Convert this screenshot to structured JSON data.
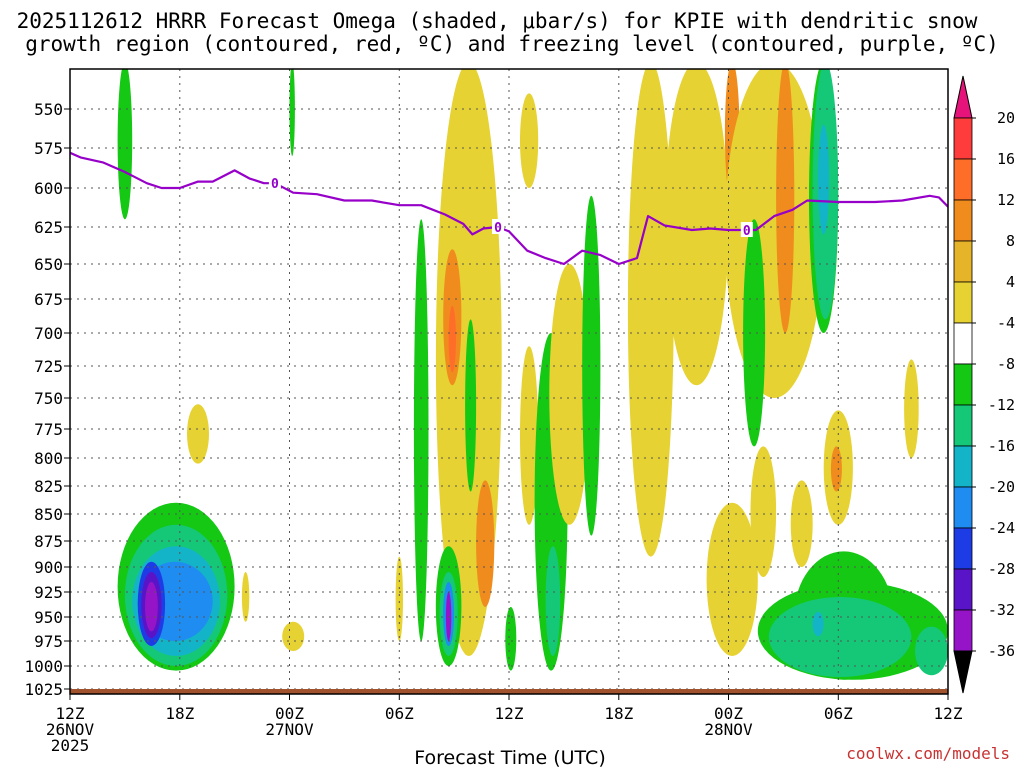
{
  "chart_data": {
    "type": "heatmap",
    "title_lines": [
      "2025112612 HRRR Forecast Omega (shaded, μbar/s) for KPIE with dendritic snow",
      "growth region (contoured, red, ºC) and freezing level (contoured, purple, ºC)"
    ],
    "xlabel": "Forecast Time (UTC)",
    "credit": "coolwx.com/models",
    "x_range_hours": [
      0,
      48
    ],
    "x_ticks": [
      {
        "h": 0,
        "l1": "12Z",
        "l2": "26NOV",
        "l3": "2025"
      },
      {
        "h": 6,
        "l1": "18Z",
        "l2": "",
        "l3": ""
      },
      {
        "h": 12,
        "l1": "00Z",
        "l2": "27NOV",
        "l3": ""
      },
      {
        "h": 18,
        "l1": "06Z",
        "l2": "",
        "l3": ""
      },
      {
        "h": 24,
        "l1": "12Z",
        "l2": "",
        "l3": ""
      },
      {
        "h": 30,
        "l1": "18Z",
        "l2": "",
        "l3": ""
      },
      {
        "h": 36,
        "l1": "00Z",
        "l2": "28NOV",
        "l3": ""
      },
      {
        "h": 42,
        "l1": "06Z",
        "l2": "",
        "l3": ""
      },
      {
        "h": 48,
        "l1": "12Z",
        "l2": "",
        "l3": ""
      }
    ],
    "y_ticks_hpa": [
      550,
      575,
      600,
      625,
      650,
      675,
      700,
      725,
      750,
      775,
      800,
      825,
      850,
      875,
      900,
      925,
      950,
      975,
      1000,
      1025
    ],
    "colorbar": {
      "labels": [
        "20",
        "16",
        "12",
        "8",
        "4",
        "-4",
        "-8",
        "-12",
        "-16",
        "-20",
        "-24",
        "-28",
        "-32",
        "-36"
      ],
      "colors": [
        "#ff3c3c",
        "#ff6e28",
        "#f08c1e",
        "#e6b428",
        "#e6d232",
        "#ffffff",
        "#14c814",
        "#14c878",
        "#14b4c8",
        "#1e8cf0",
        "#1e3ce6",
        "#5a14c8",
        "#9614c8",
        "#a0a0a0"
      ],
      "top_arrow_color": "#e6147a",
      "bottom_arrow_color": "#000000"
    },
    "freezing_level": {
      "label": "0",
      "color": "#9600c8",
      "points": [
        [
          0,
          578
        ],
        [
          0.6,
          581
        ],
        [
          1.8,
          584
        ],
        [
          3.0,
          590
        ],
        [
          4.2,
          597
        ],
        [
          5.0,
          600
        ],
        [
          6.0,
          600
        ],
        [
          7.0,
          596
        ],
        [
          7.8,
          596
        ],
        [
          9.0,
          589
        ],
        [
          9.8,
          594
        ],
        [
          10.6,
          597
        ],
        [
          11.2,
          597
        ],
        [
          12.2,
          603
        ],
        [
          13.5,
          604
        ],
        [
          15.0,
          608
        ],
        [
          16.5,
          608
        ],
        [
          18.0,
          611
        ],
        [
          19.2,
          611
        ],
        [
          20.5,
          617
        ],
        [
          21.5,
          623
        ],
        [
          22.0,
          630
        ],
        [
          22.6,
          626
        ],
        [
          23.4,
          625
        ],
        [
          24.0,
          628
        ],
        [
          25.0,
          641
        ],
        [
          26.0,
          646
        ],
        [
          27.0,
          650
        ],
        [
          28.0,
          641
        ],
        [
          29.0,
          644
        ],
        [
          30.0,
          650
        ],
        [
          31.0,
          646
        ],
        [
          31.6,
          618
        ],
        [
          32.5,
          624
        ],
        [
          34.0,
          627
        ],
        [
          35.0,
          626
        ],
        [
          36.0,
          627
        ],
        [
          37.5,
          627
        ],
        [
          38.5,
          618
        ],
        [
          39.5,
          614
        ],
        [
          40.3,
          608
        ],
        [
          42.0,
          609
        ],
        [
          44.0,
          609
        ],
        [
          45.5,
          608
        ],
        [
          47.0,
          605
        ],
        [
          47.5,
          606
        ],
        [
          48.0,
          612
        ]
      ],
      "label_positions": [
        [
          11.2,
          597
        ],
        [
          23.4,
          625
        ],
        [
          37.0,
          627
        ]
      ]
    },
    "omega_regions": [
      {
        "bin": "-4 to -8",
        "color": "#14c814",
        "t0": 2.6,
        "t1": 3.4,
        "p_top": 520,
        "p_bot": 620
      },
      {
        "bin": "-4 to -8",
        "color": "#14c814",
        "t0": 12.0,
        "t1": 12.3,
        "p_top": 520,
        "p_bot": 580
      },
      {
        "bin": "-4 to -8",
        "color": "#14c814",
        "t0": 2.6,
        "t1": 9.0,
        "p_top": 840,
        "p_bot": 1005
      },
      {
        "bin": "-8 to -12",
        "color": "#14c878",
        "t0": 3.0,
        "t1": 8.6,
        "p_top": 860,
        "p_bot": 1000
      },
      {
        "bin": "-12 to -16",
        "color": "#14b4c8",
        "t0": 3.4,
        "t1": 8.2,
        "p_top": 880,
        "p_bot": 990
      },
      {
        "bin": "-16 to -20",
        "color": "#1e8cf0",
        "t0": 3.7,
        "t1": 7.8,
        "p_top": 895,
        "p_bot": 975
      },
      {
        "bin": "-20 to -24",
        "color": "#1e3ce6",
        "t0": 3.7,
        "t1": 5.2,
        "p_top": 895,
        "p_bot": 980
      },
      {
        "bin": "-24 to -28",
        "color": "#5a14c8",
        "t0": 3.9,
        "t1": 5.0,
        "p_top": 905,
        "p_bot": 972
      },
      {
        "bin": "-28 to -32",
        "color": "#9614c8",
        "t0": 4.1,
        "t1": 4.8,
        "p_top": 915,
        "p_bot": 965
      },
      {
        "bin": "4 to 8",
        "color": "#e6d232",
        "t0": 6.4,
        "t1": 7.6,
        "p_top": 755,
        "p_bot": 805
      },
      {
        "bin": "4 to 8",
        "color": "#e6d232",
        "t0": 9.4,
        "t1": 9.8,
        "p_top": 905,
        "p_bot": 955
      },
      {
        "bin": "4 to 8",
        "color": "#e6d232",
        "t0": 11.6,
        "t1": 12.8,
        "p_top": 955,
        "p_bot": 985
      },
      {
        "bin": "4 to 8",
        "color": "#e6d232",
        "t0": 17.8,
        "t1": 18.2,
        "p_top": 890,
        "p_bot": 975
      },
      {
        "bin": "-4 to -8",
        "color": "#14c814",
        "t0": 18.8,
        "t1": 19.6,
        "p_top": 620,
        "p_bot": 975
      },
      {
        "bin": "4 to 8",
        "color": "#e6d232",
        "t0": 20.0,
        "t1": 23.6,
        "p_top": 520,
        "p_bot": 990
      },
      {
        "bin": "8 to 12",
        "color": "#f08c1e",
        "t0": 20.4,
        "t1": 21.4,
        "p_top": 640,
        "p_bot": 740
      },
      {
        "bin": "12 to 16",
        "color": "#ff6e28",
        "t0": 20.7,
        "t1": 21.1,
        "p_top": 680,
        "p_bot": 730
      },
      {
        "bin": "-4 to -8",
        "color": "#14c814",
        "t0": 20.0,
        "t1": 21.4,
        "p_top": 880,
        "p_bot": 1000
      },
      {
        "bin": "-8 to -12",
        "color": "#14c878",
        "t0": 20.2,
        "t1": 21.2,
        "p_top": 905,
        "p_bot": 990
      },
      {
        "bin": "-16 to -20",
        "color": "#1e8cf0",
        "t0": 20.4,
        "t1": 21.0,
        "p_top": 915,
        "p_bot": 980
      },
      {
        "bin": "-28 to -32",
        "color": "#9614c8",
        "t0": 20.55,
        "t1": 20.85,
        "p_top": 925,
        "p_bot": 975
      },
      {
        "bin": "-4 to -8",
        "color": "#14c814",
        "t0": 21.6,
        "t1": 22.2,
        "p_top": 690,
        "p_bot": 830
      },
      {
        "bin": "8 to 12",
        "color": "#f08c1e",
        "t0": 22.2,
        "t1": 23.2,
        "p_top": 820,
        "p_bot": 940
      },
      {
        "bin": "-4 to -8",
        "color": "#14c814",
        "t0": 23.8,
        "t1": 24.4,
        "p_top": 940,
        "p_bot": 1005
      },
      {
        "bin": "4 to 8",
        "color": "#e6d232",
        "t0": 24.6,
        "t1": 25.6,
        "p_top": 710,
        "p_bot": 860
      },
      {
        "bin": "4 to 8",
        "color": "#e6d232",
        "t0": 24.6,
        "t1": 25.6,
        "p_top": 540,
        "p_bot": 600
      },
      {
        "bin": "-4 to -8",
        "color": "#14c814",
        "t0": 25.4,
        "t1": 27.2,
        "p_top": 700,
        "p_bot": 1005
      },
      {
        "bin": "-8 to -12",
        "color": "#14c878",
        "t0": 26.0,
        "t1": 26.8,
        "p_top": 880,
        "p_bot": 990
      },
      {
        "bin": "4 to 8",
        "color": "#e6d232",
        "t0": 26.2,
        "t1": 28.4,
        "p_top": 650,
        "p_bot": 860
      },
      {
        "bin": "-4 to -8",
        "color": "#14c814",
        "t0": 28.0,
        "t1": 29.0,
        "p_top": 605,
        "p_bot": 870
      },
      {
        "bin": "4 to 8",
        "color": "#e6d232",
        "t0": 30.5,
        "t1": 33.0,
        "p_top": 520,
        "p_bot": 890
      },
      {
        "bin": "4 to 8",
        "color": "#e6d232",
        "t0": 32.5,
        "t1": 36.0,
        "p_top": 520,
        "p_bot": 740
      },
      {
        "bin": "8 to 12",
        "color": "#f08c1e",
        "t0": 35.8,
        "t1": 36.6,
        "p_top": 520,
        "p_bot": 610
      },
      {
        "bin": "4 to 8",
        "color": "#e6d232",
        "t0": 35.8,
        "t1": 41.2,
        "p_top": 520,
        "p_bot": 750
      },
      {
        "bin": "8 to 12",
        "color": "#f08c1e",
        "t0": 38.6,
        "t1": 39.6,
        "p_top": 520,
        "p_bot": 700
      },
      {
        "bin": "4 to 8",
        "color": "#e6d232",
        "t0": 34.8,
        "t1": 37.6,
        "p_top": 840,
        "p_bot": 990
      },
      {
        "bin": "4 to 8",
        "color": "#e6d232",
        "t0": 37.2,
        "t1": 38.6,
        "p_top": 790,
        "p_bot": 910
      },
      {
        "bin": "-4 to -8",
        "color": "#14c814",
        "t0": 36.8,
        "t1": 38.0,
        "p_top": 620,
        "p_bot": 790
      },
      {
        "bin": "4 to 8",
        "color": "#e6d232",
        "t0": 39.4,
        "t1": 40.6,
        "p_top": 820,
        "p_bot": 900
      },
      {
        "bin": "-4 to -8",
        "color": "#14c814",
        "t0": 40.4,
        "t1": 42.0,
        "p_top": 520,
        "p_bot": 700
      },
      {
        "bin": "-8 to -12",
        "color": "#14c878",
        "t0": 40.6,
        "t1": 42.0,
        "p_top": 520,
        "p_bot": 690
      },
      {
        "bin": "-12 to -16",
        "color": "#14b4c8",
        "t0": 40.9,
        "t1": 41.5,
        "p_top": 560,
        "p_bot": 630
      },
      {
        "bin": "4 to 8",
        "color": "#e6d232",
        "t0": 41.2,
        "t1": 42.8,
        "p_top": 760,
        "p_bot": 860
      },
      {
        "bin": "8 to 12",
        "color": "#f08c1e",
        "t0": 41.6,
        "t1": 42.2,
        "p_top": 790,
        "p_bot": 830
      },
      {
        "bin": "4 to 8",
        "color": "#e6d232",
        "t0": 45.6,
        "t1": 46.4,
        "p_top": 720,
        "p_bot": 800
      },
      {
        "bin": "-4 to -8",
        "color": "#14c814",
        "t0": 37.6,
        "t1": 48.0,
        "p_top": 915,
        "p_bot": 1015
      },
      {
        "bin": "-4 to -8",
        "color": "#14c814",
        "t0": 39.6,
        "t1": 45.0,
        "p_top": 885,
        "p_bot": 1015
      },
      {
        "bin": "-8 to -12",
        "color": "#14c878",
        "t0": 38.2,
        "t1": 46.0,
        "p_top": 930,
        "p_bot": 1012
      },
      {
        "bin": "-8 to -12",
        "color": "#14c878",
        "t0": 46.2,
        "t1": 48.0,
        "p_top": 960,
        "p_bot": 1010
      },
      {
        "bin": "-12 to -16",
        "color": "#14b4c8",
        "t0": 40.6,
        "t1": 41.2,
        "p_top": 945,
        "p_bot": 970
      }
    ],
    "ground": {
      "color": "#a0522d",
      "p_top": 1025,
      "p_bot": 1035
    }
  }
}
